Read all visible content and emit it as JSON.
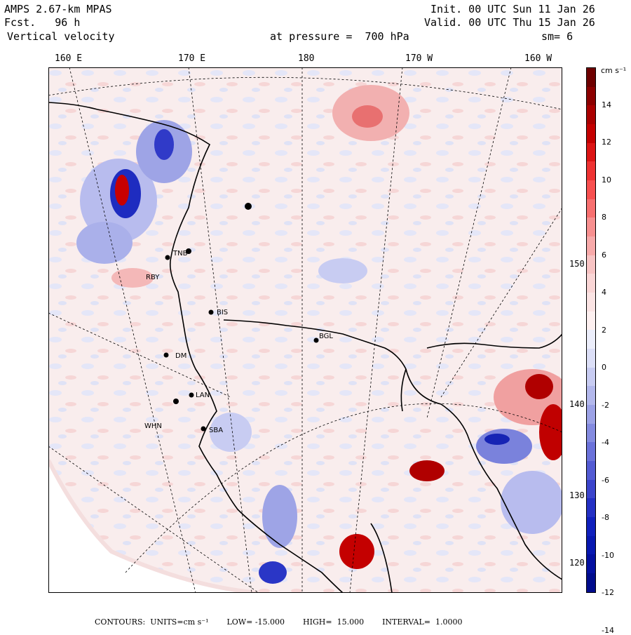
{
  "header": {
    "model": "AMPS 2.67-km MPAS",
    "forecast": "Fcst.   96 h",
    "field": "Vertical velocity",
    "level": "at pressure =  700 hPa",
    "init": "Init. 00 UTC Sun 11 Jan 26",
    "valid": "Valid. 00 UTC Thu 15 Jan 26",
    "smooth": "sm= 6"
  },
  "longitude_labels": [
    "160 E",
    "170 E",
    "180",
    "170 W",
    "160 W"
  ],
  "latitude_labels": [
    "150 W",
    "140 W",
    "130 W",
    "120 W"
  ],
  "stations": [
    "TNB",
    "RBY",
    "BIS",
    "BGL",
    "DM",
    "LAN",
    "WHN",
    "SBA"
  ],
  "colorbar": {
    "units": "cm s⁻¹",
    "tick_labels": [
      "14",
      "12",
      "10",
      "8",
      "6",
      "4",
      "2",
      "0",
      "-2",
      "-4",
      "-6",
      "-8",
      "-10",
      "-12",
      "-14"
    ],
    "colors": [
      "#6e0000",
      "#8c0000",
      "#aa0000",
      "#c40000",
      "#dc1414",
      "#ee3232",
      "#f85050",
      "#f87070",
      "#f89090",
      "#f8aaaa",
      "#f8c4c4",
      "#fad6d6",
      "#fbe4e4",
      "#fdf0f0",
      "#eceefb",
      "#dcdff7",
      "#c8ccf2",
      "#b3b8ec",
      "#9ca2e6",
      "#848be0",
      "#6b72da",
      "#535bd3",
      "#3b44cc",
      "#2430c4",
      "#1020bd",
      "#0818b0",
      "#0410a0",
      "#000c8c"
    ]
  },
  "footer": {
    "contours": "CONTOURS:  UNITS=cm s⁻¹",
    "low": "LOW= -15.000",
    "high": "HIGH=  15.000",
    "interval": "INTERVAL=  1.0000"
  }
}
